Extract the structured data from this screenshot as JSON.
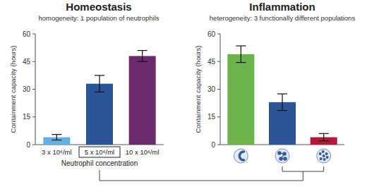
{
  "chart_data": [
    {
      "type": "bar",
      "title": "Homeostasis",
      "subtitle": "homogeneity: 1 population of neutrophils",
      "y_label": "Containment capacity (hours)",
      "x_label": "Neutrophil concentration",
      "categories": [
        "3 x 10⁶/ml",
        "5 x 10⁶/ml",
        "10 x 10⁶/ml"
      ],
      "values": [
        4,
        33,
        48
      ],
      "errors": [
        1.5,
        4.5,
        3
      ],
      "colors": [
        "#62b0e0",
        "#2c5597",
        "#6a2a6c"
      ],
      "ylim": [
        0,
        60
      ],
      "yticks": [
        0,
        15,
        30,
        45,
        60
      ]
    },
    {
      "type": "bar",
      "title": "Inflammation",
      "subtitle": "heterogeneity: 3 functionally different populations",
      "y_label": "Containment capacity (hours)",
      "categories": [
        null,
        null,
        null
      ],
      "values": [
        49,
        23,
        4
      ],
      "errors": [
        4.5,
        4.5,
        2
      ],
      "colors": [
        "#6cb34b",
        "#2c5597",
        "#ad1d3b"
      ],
      "ylim": [
        0,
        60
      ],
      "yticks": [
        0,
        15,
        30,
        45,
        60
      ]
    }
  ]
}
